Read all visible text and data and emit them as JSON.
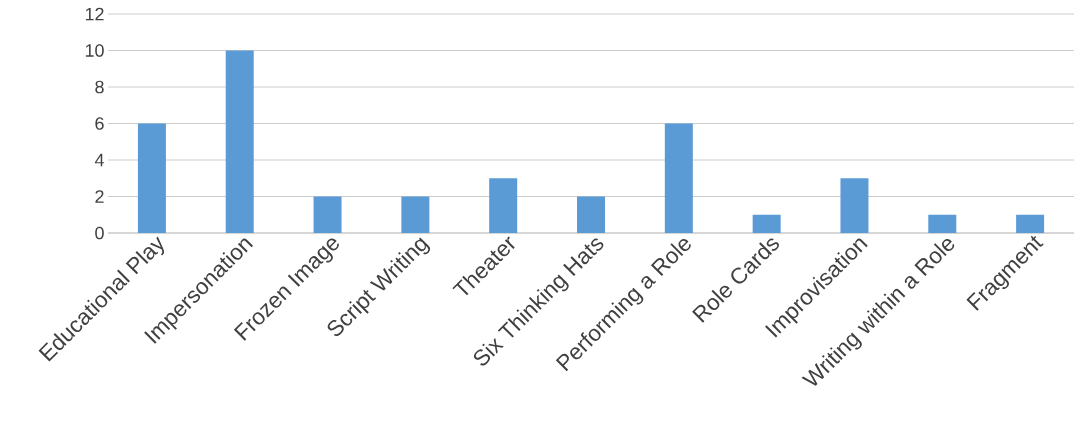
{
  "chart_data": {
    "type": "bar",
    "categories": [
      "Educational Play",
      "Impersonation",
      "Frozen Image",
      "Script Writing",
      "Theater",
      "Six Thinking Hats",
      "Performing a Role",
      "Role Cards",
      "Improvisation",
      "Writing within a Role",
      "Fragment"
    ],
    "values": [
      6,
      10,
      2,
      2,
      3,
      2,
      6,
      1,
      3,
      1,
      1
    ],
    "color": "#5b9bd5",
    "ylim": [
      0,
      12
    ],
    "yticks": [
      0,
      2,
      4,
      6,
      8,
      10,
      12
    ],
    "grid": "y"
  }
}
